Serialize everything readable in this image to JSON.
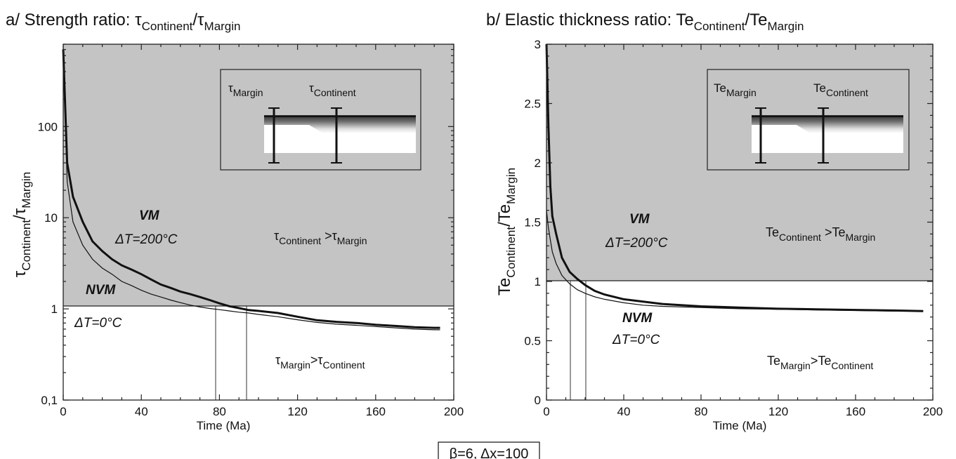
{
  "footer_text": "β=6, Δx=100",
  "chart_data": [
    {
      "panel": "a",
      "type": "line",
      "title_main": "a/ Strength ratio: τ",
      "title_sub1": "Continent",
      "title_mid": "/τ",
      "title_sub2": "Margin",
      "xlabel": "Time (Ma)",
      "ylabel_main1": "τ",
      "ylabel_sub1": "Continent",
      "ylabel_mid": "/τ",
      "ylabel_sub2": "Margin",
      "y_scale": "log",
      "xlim": [
        0,
        200
      ],
      "ylim": [
        0.1,
        800
      ],
      "x_ticks": [
        "0",
        "40",
        "80",
        "120",
        "160",
        "200"
      ],
      "x_tick_values": [
        0,
        40,
        80,
        120,
        160,
        200
      ],
      "y_ticks": [
        "0,1",
        "1",
        "10",
        "100"
      ],
      "y_tick_values": [
        0.1,
        1,
        10,
        100
      ],
      "threshold": 1,
      "vlines": [
        78,
        94
      ],
      "series": [
        {
          "style": "thick",
          "x": [
            0,
            2,
            5,
            10,
            15,
            20,
            25,
            30,
            35,
            40,
            45,
            50,
            55,
            60,
            65,
            70,
            75,
            80,
            85,
            90,
            95,
            100,
            110,
            120,
            130,
            140,
            150,
            160,
            170,
            180,
            190,
            193
          ],
          "y": [
            700,
            40,
            17,
            9,
            5.5,
            4.3,
            3.5,
            3.0,
            2.7,
            2.4,
            2.1,
            1.85,
            1.7,
            1.55,
            1.45,
            1.35,
            1.25,
            1.15,
            1.07,
            1.02,
            0.97,
            0.95,
            0.9,
            0.82,
            0.75,
            0.72,
            0.7,
            0.67,
            0.65,
            0.63,
            0.62,
            0.62
          ]
        },
        {
          "style": "thin",
          "x": [
            0,
            2,
            5,
            10,
            15,
            20,
            25,
            30,
            35,
            40,
            45,
            50,
            55,
            60,
            65,
            70,
            75,
            80,
            85,
            90,
            95,
            100,
            110,
            120,
            130,
            140,
            150,
            160,
            170,
            180,
            190,
            193
          ],
          "y": [
            650,
            25,
            9,
            5,
            3.5,
            2.8,
            2.4,
            2.0,
            1.8,
            1.6,
            1.45,
            1.35,
            1.25,
            1.17,
            1.1,
            1.05,
            1.01,
            0.98,
            0.95,
            0.92,
            0.9,
            0.87,
            0.82,
            0.76,
            0.71,
            0.68,
            0.66,
            0.64,
            0.62,
            0.6,
            0.59,
            0.59
          ]
        }
      ],
      "labels": {
        "vm": "VM",
        "dt200": "ΔT=200°C",
        "nvm": "NVM",
        "dt0": "ΔT=0°C",
        "upper_main1": "τ",
        "upper_sub1": "Continent",
        "upper_mid": " >τ",
        "upper_sub2": "Margin",
        "lower_main1": "τ",
        "lower_sub1": "Margin",
        "lower_mid": ">τ",
        "lower_sub2": "Continent",
        "inset_left_main": "τ",
        "inset_left_sub": "Margin",
        "inset_right_main": "τ",
        "inset_right_sub": "Continent"
      }
    },
    {
      "panel": "b",
      "type": "line",
      "title_main": "b/ Elastic thickness ratio: Te",
      "title_sub1": "Continent",
      "title_mid": "/Te",
      "title_sub2": "Margin",
      "xlabel": "Time (Ma)",
      "ylabel_main1": "Te",
      "ylabel_sub1": "Continent",
      "ylabel_mid": "/Te",
      "ylabel_sub2": "Margin",
      "y_scale": "linear",
      "xlim": [
        0,
        200
      ],
      "ylim": [
        0,
        3
      ],
      "x_ticks": [
        "0",
        "40",
        "80",
        "120",
        "160",
        "200"
      ],
      "x_tick_values": [
        0,
        40,
        80,
        120,
        160,
        200
      ],
      "y_ticks": [
        "0",
        "0.5",
        "1",
        "1.5",
        "2",
        "2.5",
        "3"
      ],
      "y_tick_values": [
        0,
        0.5,
        1,
        1.5,
        2,
        2.5,
        3
      ],
      "threshold": 1,
      "vlines": [
        13,
        21
      ],
      "series": [
        {
          "style": "thick",
          "x": [
            0,
            1,
            2,
            3,
            5,
            8,
            12,
            16,
            20,
            25,
            30,
            40,
            50,
            60,
            80,
            100,
            120,
            140,
            160,
            180,
            195
          ],
          "y": [
            3.0,
            2.3,
            1.8,
            1.55,
            1.4,
            1.2,
            1.08,
            1.02,
            0.97,
            0.92,
            0.89,
            0.85,
            0.83,
            0.81,
            0.79,
            0.78,
            0.77,
            0.765,
            0.76,
            0.755,
            0.75
          ]
        },
        {
          "style": "thin",
          "x": [
            0,
            1,
            2,
            3,
            5,
            8,
            12,
            16,
            20,
            25,
            30,
            40,
            50,
            60,
            80,
            100,
            120,
            140,
            160,
            180,
            195
          ],
          "y": [
            1.6,
            1.45,
            1.35,
            1.25,
            1.15,
            1.05,
            0.98,
            0.93,
            0.9,
            0.87,
            0.85,
            0.82,
            0.8,
            0.79,
            0.78,
            0.77,
            0.765,
            0.76,
            0.755,
            0.75,
            0.75
          ]
        }
      ],
      "labels": {
        "vm": "VM",
        "dt200": "ΔT=200°C",
        "nvm": "NVM",
        "dt0": "ΔT=0°C",
        "upper_main1": "Te",
        "upper_sub1": "Continent",
        "upper_mid": " >Te",
        "upper_sub2": "Margin",
        "lower_main1": "Te",
        "lower_sub1": "Margin",
        "lower_mid": ">Te",
        "lower_sub2": "Continent",
        "inset_left_main": "Te",
        "inset_left_sub": "Margin",
        "inset_right_main": "Te",
        "inset_right_sub": "Continent"
      }
    }
  ]
}
